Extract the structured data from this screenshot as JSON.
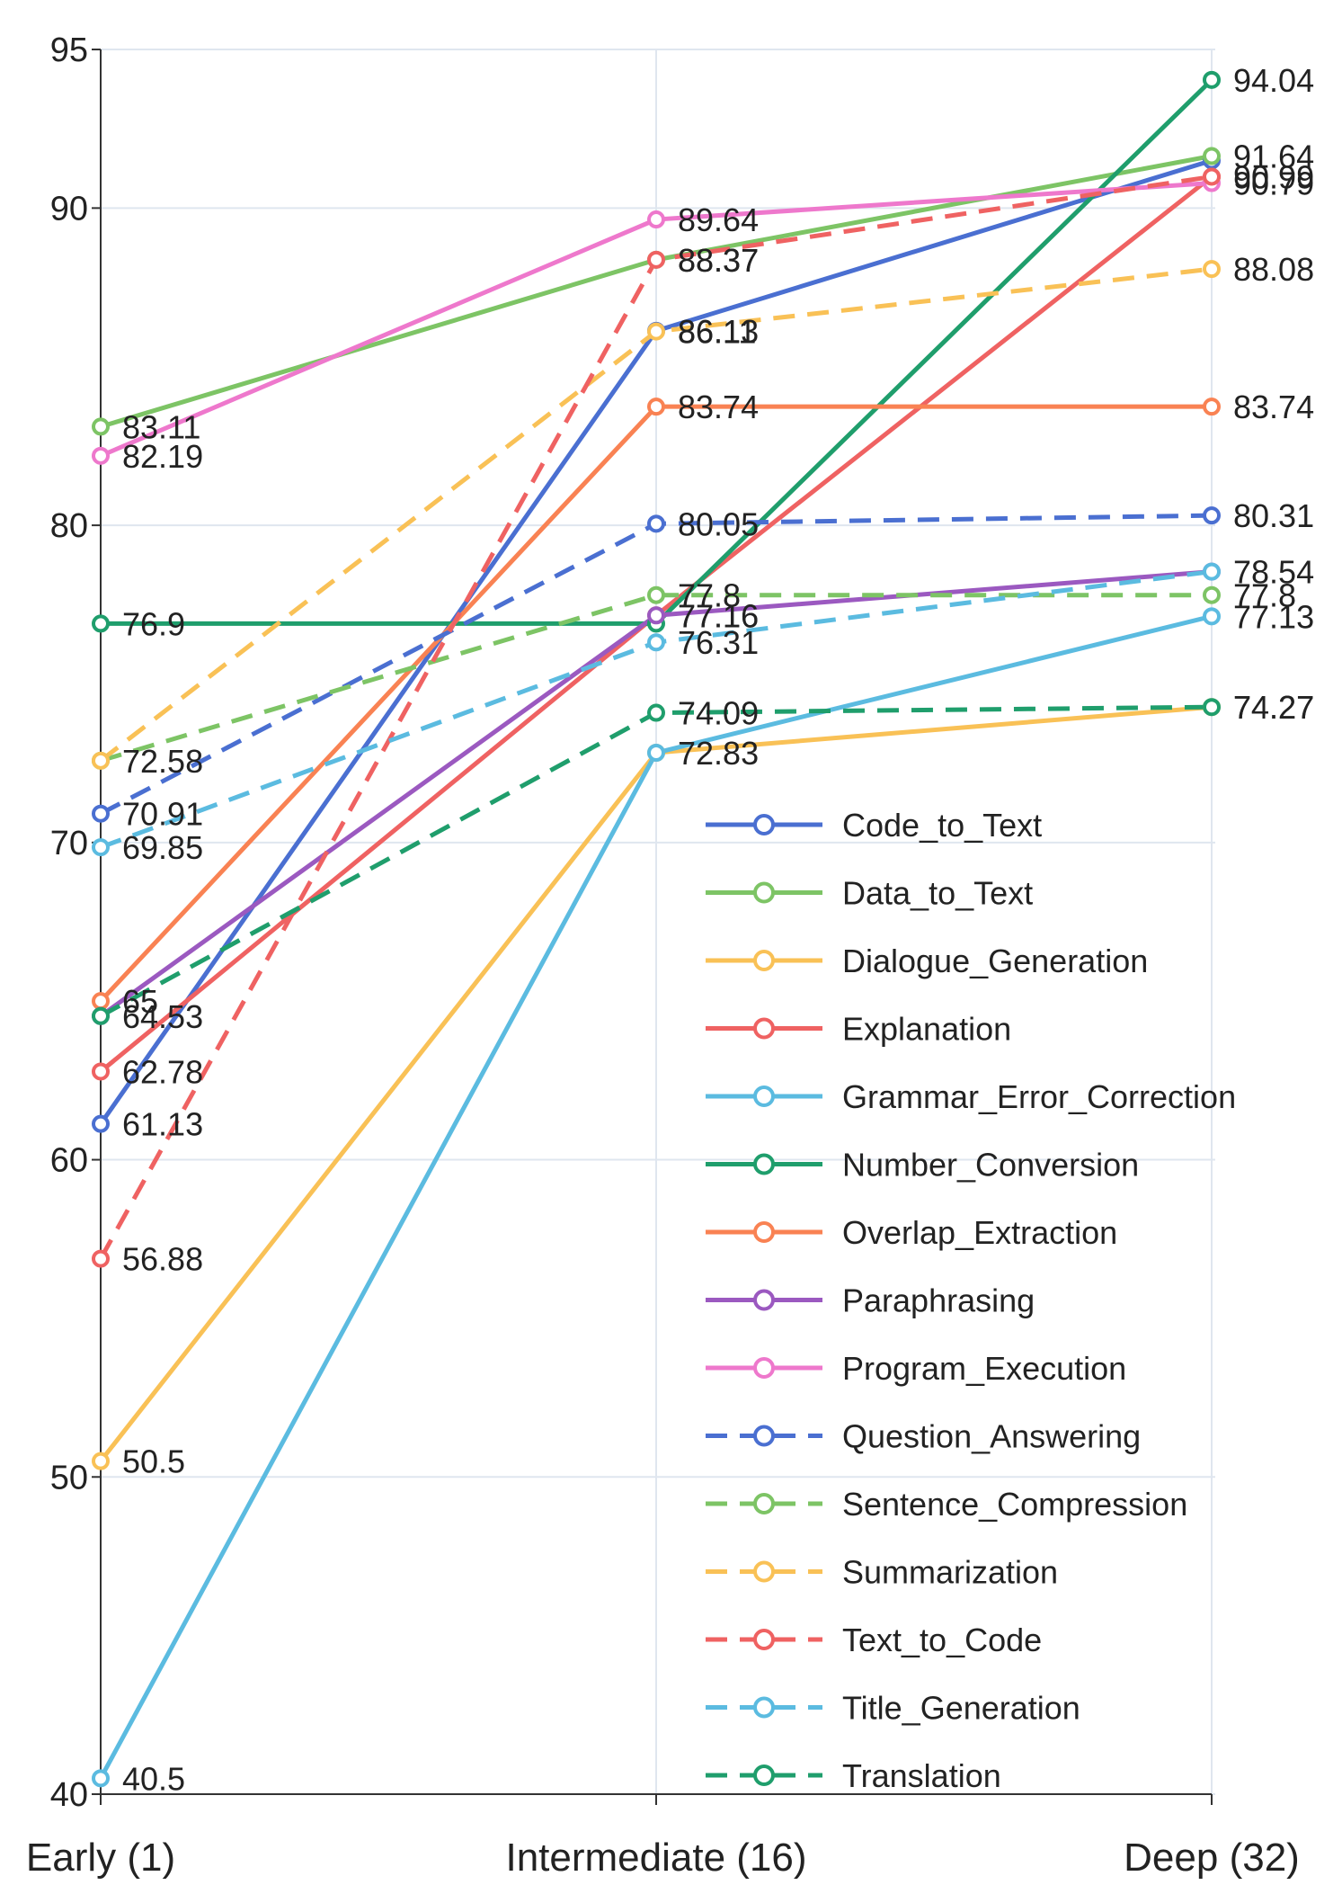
{
  "chart_data": {
    "type": "line",
    "x": [
      "Early (1)",
      "Intermediate (16)",
      "Deep (32)"
    ],
    "ylim": [
      40,
      95
    ],
    "yticks": [
      40,
      50,
      60,
      70,
      80,
      90,
      95
    ],
    "grid": true,
    "legend_position": "bottom-right",
    "series": [
      {
        "name": "Code_to_Text",
        "values": [
          61.13,
          86.13,
          91.5
        ],
        "labels": [
          "61.13",
          "86.13",
          ""
        ],
        "color": "#4a6fd1",
        "dash": false
      },
      {
        "name": "Data_to_Text",
        "values": [
          83.11,
          88.37,
          91.64
        ],
        "labels": [
          "83.11",
          "88.37",
          "91.64"
        ],
        "color": "#7dc465",
        "dash": false
      },
      {
        "name": "Dialogue_Generation",
        "values": [
          50.5,
          72.83,
          74.27
        ],
        "labels": [
          "50.5",
          "72.83",
          "74.27"
        ],
        "color": "#f9c156",
        "dash": false
      },
      {
        "name": "Explanation",
        "values": [
          62.78,
          77.16,
          90.99
        ],
        "labels": [
          "62.78",
          "77.16",
          "90.99"
        ],
        "color": "#ef6262",
        "dash": false
      },
      {
        "name": "Grammar_Error_Correction",
        "values": [
          40.5,
          72.83,
          77.13
        ],
        "labels": [
          "40.5",
          "",
          "77.13"
        ],
        "color": "#5bbbe0",
        "dash": false
      },
      {
        "name": "Number_Conversion",
        "values": [
          76.9,
          76.9,
          94.04
        ],
        "labels": [
          "76.9",
          "",
          "94.04"
        ],
        "color": "#1f9e6c",
        "dash": false
      },
      {
        "name": "Overlap_Extraction",
        "values": [
          65,
          83.74,
          83.74
        ],
        "labels": [
          "65",
          "83.74",
          "83.74"
        ],
        "color": "#f98253",
        "dash": false
      },
      {
        "name": "Paraphrasing",
        "values": [
          64.53,
          77.16,
          78.54
        ],
        "labels": [
          "64.53",
          "77.16",
          "78.54"
        ],
        "color": "#9b59c0",
        "dash": false
      },
      {
        "name": "Program_Execution",
        "values": [
          82.19,
          89.64,
          90.79
        ],
        "labels": [
          "82.19",
          "89.64",
          "90.79"
        ],
        "color": "#ee78cc",
        "dash": false
      },
      {
        "name": "Question_Answering",
        "values": [
          70.91,
          80.05,
          80.31
        ],
        "labels": [
          "70.91",
          "80.05",
          "80.31"
        ],
        "color": "#4a6fd1",
        "dash": true
      },
      {
        "name": "Sentence_Compression",
        "values": [
          72.58,
          77.8,
          77.8
        ],
        "labels": [
          "",
          "77.8",
          "77.8"
        ],
        "color": "#7dc465",
        "dash": true
      },
      {
        "name": "Summarization",
        "values": [
          72.58,
          86.11,
          88.08
        ],
        "labels": [
          "72.58",
          "86.11",
          "88.08"
        ],
        "color": "#f9c156",
        "dash": true
      },
      {
        "name": "Text_to_Code",
        "values": [
          56.88,
          88.37,
          90.99
        ],
        "labels": [
          "56.88",
          "88.37",
          ""
        ],
        "color": "#ef6262",
        "dash": true
      },
      {
        "name": "Title_Generation",
        "values": [
          69.85,
          76.31,
          78.54
        ],
        "labels": [
          "69.85",
          "76.31",
          ""
        ],
        "color": "#5bbbe0",
        "dash": true
      },
      {
        "name": "Translation",
        "values": [
          64.53,
          74.09,
          74.27
        ],
        "labels": [
          "",
          "74.09",
          "74.27"
        ],
        "color": "#1f9e6c",
        "dash": true
      }
    ]
  }
}
